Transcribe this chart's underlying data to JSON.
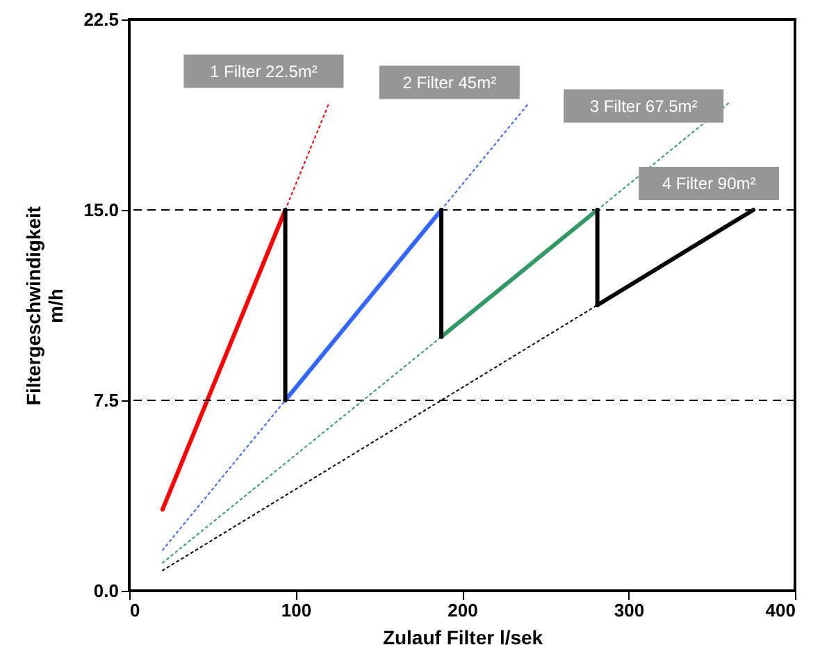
{
  "chart_data": {
    "type": "line",
    "xlabel": "Zulauf Filter l/sek",
    "ylabel": "Filtergeschwindigkeit\nm/h",
    "xlim": [
      0,
      400
    ],
    "xticks": [
      0,
      100,
      200,
      300,
      400
    ],
    "ylim": [
      0,
      22.5
    ],
    "yticks": [
      {
        "value": 0,
        "label": "0.0"
      },
      7.5,
      {
        "value": 15,
        "label": "15.0"
      },
      22.5
    ],
    "grid": false,
    "ref_lines": [
      {
        "axis": "y",
        "value": 15,
        "color": "#000000",
        "line_style": "dashed"
      },
      {
        "axis": "y",
        "value": 7.5,
        "color": "#000000",
        "line_style": "dashed"
      }
    ],
    "series": [
      {
        "color": "#ff0000",
        "line_style": "solid",
        "x": [
          20,
          93.75
        ],
        "values": [
          3.2,
          15
        ]
      },
      {
        "name": "1 Filter 22.5m²",
        "color": "#ff0000",
        "line_style": "dotted",
        "x": [
          93.75,
          120
        ],
        "values": [
          15,
          19.2
        ]
      },
      {
        "color": "#3366ff",
        "line_style": "dotted",
        "x": [
          20,
          93.75
        ],
        "values": [
          1.6,
          7.5
        ]
      },
      {
        "color": "#3366ff",
        "line_style": "solid",
        "x": [
          93.75,
          187.5
        ],
        "values": [
          7.5,
          15
        ]
      },
      {
        "name": "2 Filter 45m²",
        "color": "#3366ff",
        "line_style": "dotted",
        "x": [
          187.5,
          240
        ],
        "values": [
          15,
          19.2
        ]
      },
      {
        "color": "#339966",
        "line_style": "dotted",
        "x": [
          20,
          187.5
        ],
        "values": [
          1.1,
          10
        ]
      },
      {
        "color": "#339966",
        "line_style": "solid",
        "x": [
          187.5,
          281.25
        ],
        "values": [
          10,
          15
        ]
      },
      {
        "name": "3 Filter 67.5m²",
        "color": "#339966",
        "line_style": "dotted",
        "x": [
          281.25,
          360
        ],
        "values": [
          15,
          19.2
        ]
      },
      {
        "color": "#000000",
        "line_style": "dotted",
        "x": [
          20,
          281.25
        ],
        "values": [
          0.8,
          11.25
        ]
      },
      {
        "name": "4 Filter 90m²",
        "color": "#000000",
        "line_style": "solid",
        "x": [
          281.25,
          375
        ],
        "values": [
          11.25,
          15
        ]
      },
      {
        "color": "#000000",
        "line_style": "solid",
        "x": [
          93.75,
          93.75
        ],
        "values": [
          15,
          7.5
        ]
      },
      {
        "color": "#000000",
        "line_style": "solid",
        "x": [
          187.5,
          187.5
        ],
        "values": [
          15,
          10
        ]
      },
      {
        "color": "#000000",
        "line_style": "solid",
        "x": [
          281.25,
          281.25
        ],
        "values": [
          15,
          11.25
        ]
      }
    ]
  }
}
